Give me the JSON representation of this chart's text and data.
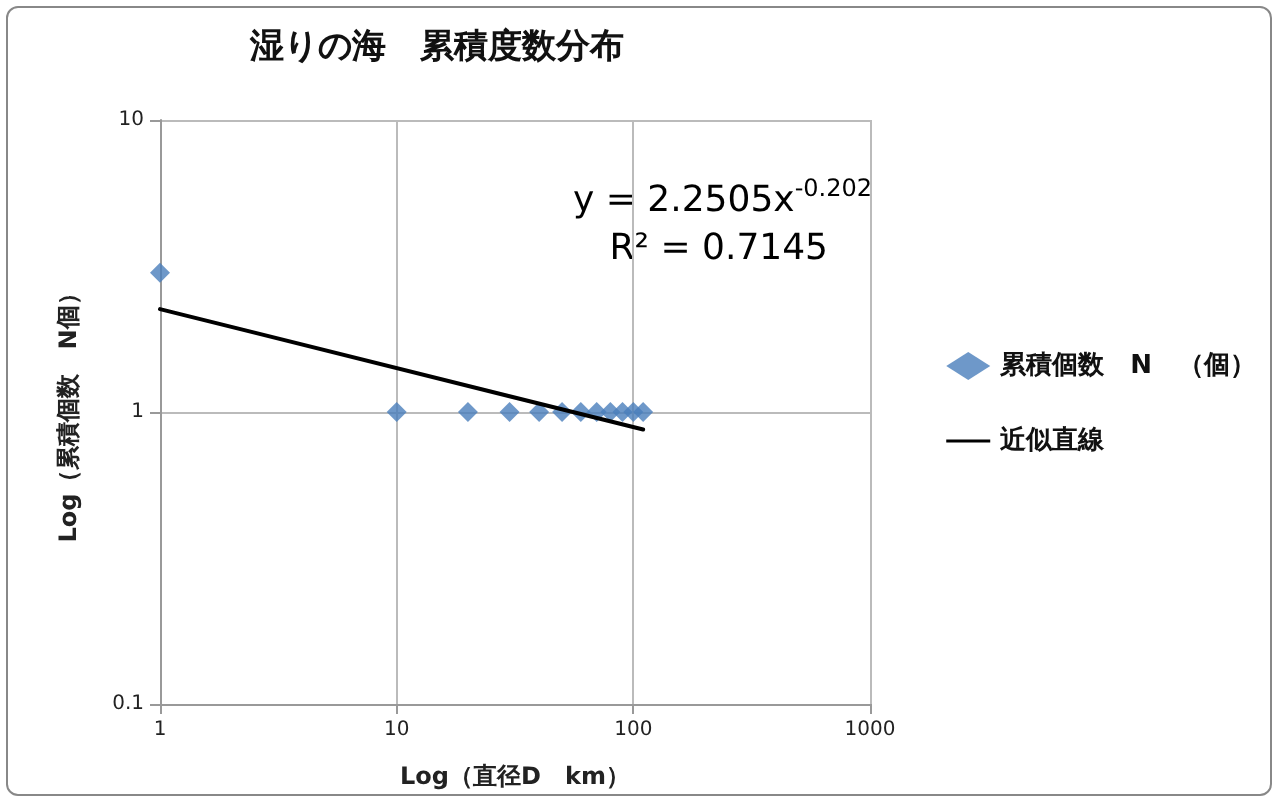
{
  "chart_data": {
    "type": "scatter",
    "title": "湿りの海　累積度数分布",
    "xlabel": "Log（直径D　km）",
    "ylabel": "Log（累積個数　N個）",
    "log": "xy",
    "grid": true,
    "legend": "right",
    "marker": "diamond",
    "xlim": [
      1,
      1000
    ],
    "xticks": [
      1,
      10,
      100,
      1000
    ],
    "ylim": [
      0.1,
      10
    ],
    "yticks": [
      0.1,
      1,
      10
    ],
    "annotations": [
      "y = 2.2505x$^{-0.202}$",
      "R² = 0.7145"
    ],
    "series": [
      {
        "name": "累積個数　N　（個）",
        "color": "#4a7ebb",
        "x": [
          1,
          10,
          20,
          30,
          40,
          50,
          60,
          70,
          80,
          90,
          100,
          110
        ],
        "values": [
          3,
          1,
          1,
          1,
          1,
          1,
          1,
          1,
          1,
          1,
          1,
          1
        ]
      },
      {
        "name": "近似直線",
        "type": "line",
        "color": "#000000",
        "marker": "none",
        "x": [
          1,
          110
        ],
        "values": [
          2.2505,
          0.871
        ]
      }
    ]
  }
}
